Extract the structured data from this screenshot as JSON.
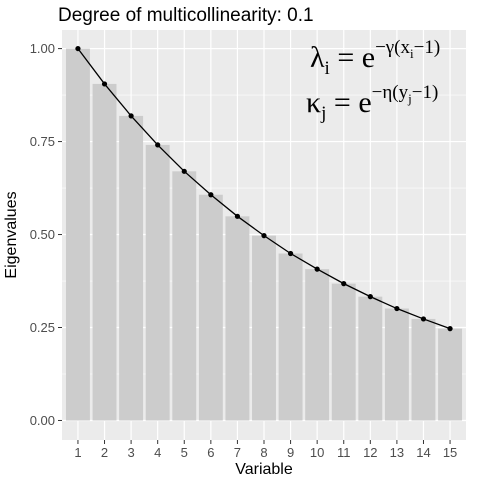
{
  "chart_data": {
    "type": "bar",
    "title": "Degree of multicollinearity: 0.1",
    "xlabel": "Variable",
    "ylabel": "Eigenvalues",
    "categories": [
      "1",
      "2",
      "3",
      "4",
      "5",
      "6",
      "7",
      "8",
      "9",
      "10",
      "11",
      "12",
      "13",
      "14",
      "15"
    ],
    "values": [
      1.0,
      0.905,
      0.819,
      0.741,
      0.67,
      0.607,
      0.549,
      0.497,
      0.449,
      0.407,
      0.368,
      0.333,
      0.301,
      0.273,
      0.247
    ],
    "line_values": [
      1.0,
      0.905,
      0.819,
      0.741,
      0.67,
      0.607,
      0.549,
      0.497,
      0.449,
      0.407,
      0.368,
      0.333,
      0.301,
      0.273,
      0.247
    ],
    "ylim": [
      0,
      1.05
    ],
    "yticks": [
      0.0,
      0.25,
      0.5,
      0.75,
      1.0
    ],
    "ytick_labels": [
      "0.00",
      "0.25",
      "0.50",
      "0.75",
      "1.00"
    ],
    "grid": true,
    "annotations": {
      "lambda": {
        "base": "λ",
        "sub": "i",
        "eq": " = e",
        "sup_pre": "−γ(x",
        "sup_sub": "i",
        "sup_post": "−1)"
      },
      "kappa": {
        "base": "κ",
        "sub": "j",
        "eq": " = e",
        "sup_pre": "−η(y",
        "sup_sub": "j",
        "sup_post": "−1)"
      }
    },
    "colors": {
      "panel": "#ebebeb",
      "grid_major": "#ffffff",
      "bar": "#cccccc",
      "line": "#000000",
      "tick_text": "#4d4d4d"
    }
  }
}
